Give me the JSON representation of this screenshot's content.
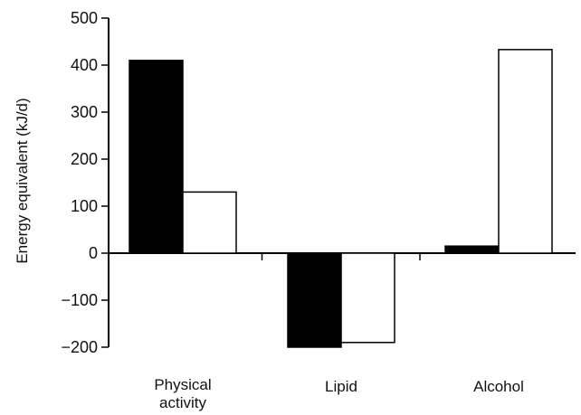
{
  "chart_data": {
    "type": "bar",
    "ylabel": "Energy equivalent (kJ/d)",
    "ylim": [
      -200,
      500
    ],
    "yticks": [
      -200,
      -100,
      0,
      100,
      200,
      300,
      400,
      500
    ],
    "ytick_labels": [
      "−200",
      "−100",
      "0",
      "100",
      "200",
      "300",
      "400",
      "500"
    ],
    "categories": [
      [
        "Physical",
        "activity"
      ],
      [
        "Lipid"
      ],
      [
        "Alcohol"
      ]
    ],
    "series": [
      {
        "color": "#000000",
        "values": [
          410,
          -200,
          15
        ]
      },
      {
        "color": "#ffffff",
        "values": [
          130,
          -190,
          433
        ]
      }
    ],
    "grid": false,
    "legend": "none"
  }
}
